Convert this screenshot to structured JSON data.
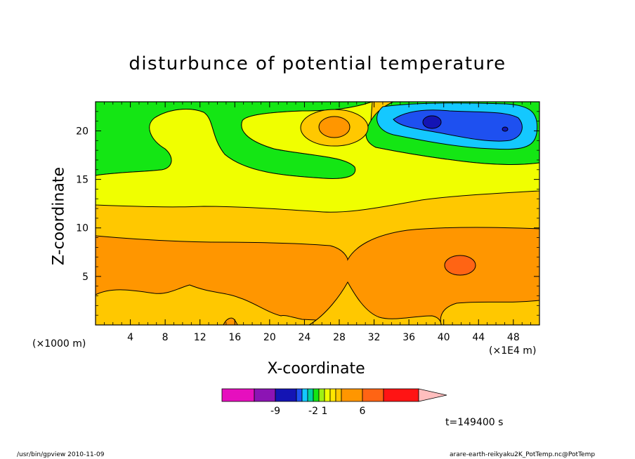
{
  "chart_data": {
    "type": "heatmap",
    "title": "disturbunce of potential temperature",
    "xlabel": "X-coordinate",
    "ylabel": "Z-coordinate",
    "x_unit_left": "(×1000 m)",
    "x_unit_right": "(×1E4 m)",
    "xlim": [
      0,
      51
    ],
    "ylim": [
      0,
      23
    ],
    "x_ticks": [
      4,
      8,
      12,
      16,
      20,
      24,
      28,
      32,
      36,
      40,
      44,
      48
    ],
    "y_ticks": [
      5,
      10,
      15,
      20
    ],
    "colorbar": {
      "colors": [
        "#e60fbe",
        "#8c14b4",
        "#1414b4",
        "#1e50f0",
        "#14c8ff",
        "#00d2a0",
        "#14e614",
        "#a0f014",
        "#f0ff00",
        "#ffe600",
        "#ffc800",
        "#ff9600",
        "#ff6414",
        "#ff1414",
        "#ff7878",
        "#ffbebe"
      ],
      "tick_labels": [
        "-9",
        "-2",
        "1",
        "6"
      ],
      "tick_index": [
        2,
        6,
        8,
        12
      ]
    },
    "annotation": "t=149400 s"
  },
  "footer": {
    "left": "/usr/bin/gpview  2010-11-09",
    "right": "arare-earth-reikyaku2K_PotTemp.nc@PotTemp"
  }
}
